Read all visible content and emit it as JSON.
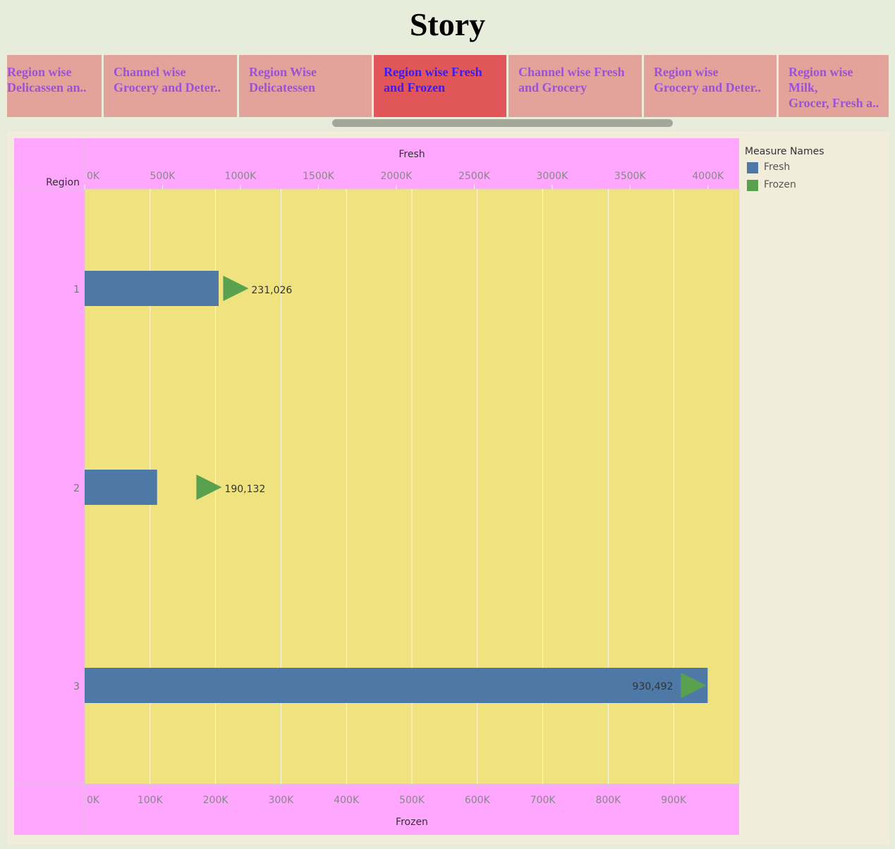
{
  "title": "Story",
  "tabs": [
    {
      "line1": "Region wise",
      "line2": "Delicassen an..",
      "active": false
    },
    {
      "line1": "Channel wise",
      "line2": "Grocery and Deter..",
      "active": false
    },
    {
      "line1": "Region Wise",
      "line2": "Delicatessen",
      "active": false
    },
    {
      "line1": "Region wise Fresh",
      "line2": "and Frozen",
      "active": true
    },
    {
      "line1": "Channel wise Fresh",
      "line2": "and Grocery",
      "active": false
    },
    {
      "line1": "Region wise",
      "line2": "Grocery and Deter..",
      "active": false
    },
    {
      "line1": "Region wise Milk,",
      "line2": "Grocer, Fresh a..",
      "active": false
    }
  ],
  "legend": {
    "title": "Measure Names",
    "items": [
      {
        "label": "Fresh",
        "color": "#4e79a7"
      },
      {
        "label": "Frozen",
        "color": "#59a14f"
      }
    ]
  },
  "chart_data": {
    "type": "bar",
    "orientation": "horizontal",
    "row_header": "Region",
    "categories": [
      "1",
      "2",
      "3"
    ],
    "top_axis": {
      "label": "Fresh",
      "range": [
        0,
        4200000
      ],
      "ticks": [
        0,
        500000,
        1000000,
        1500000,
        2000000,
        2500000,
        3000000,
        3500000,
        4000000
      ],
      "tick_labels": [
        "0K",
        "500K",
        "1000K",
        "1500K",
        "2000K",
        "2500K",
        "3000K",
        "3500K",
        "4000K"
      ]
    },
    "bottom_axis": {
      "label": "Frozen",
      "range": [
        0,
        1000000
      ],
      "ticks": [
        0,
        100000,
        200000,
        300000,
        400000,
        500000,
        600000,
        700000,
        800000,
        900000
      ],
      "tick_labels": [
        "0K",
        "100K",
        "200K",
        "300K",
        "400K",
        "500K",
        "600K",
        "700K",
        "800K",
        "900K"
      ]
    },
    "series": [
      {
        "name": "Fresh",
        "axis": "top",
        "mark": "bar",
        "color": "#4e79a7",
        "values": [
          860000,
          465000,
          3998000
        ]
      },
      {
        "name": "Frozen",
        "axis": "bottom",
        "mark": "triangle",
        "color": "#59a14f",
        "values": [
          231026,
          190132,
          930492
        ]
      }
    ],
    "data_labels": [
      "231,026",
      "190,132",
      "930,492"
    ],
    "grid": true,
    "legend_position": "right"
  },
  "colors": {
    "background": "#e8ecda",
    "dashboard": "#f2ecda",
    "header_pane": "#ffa6ff",
    "plot_area": "#efe27f",
    "tab": "#e4a39a",
    "tab_active": "#e15759"
  }
}
